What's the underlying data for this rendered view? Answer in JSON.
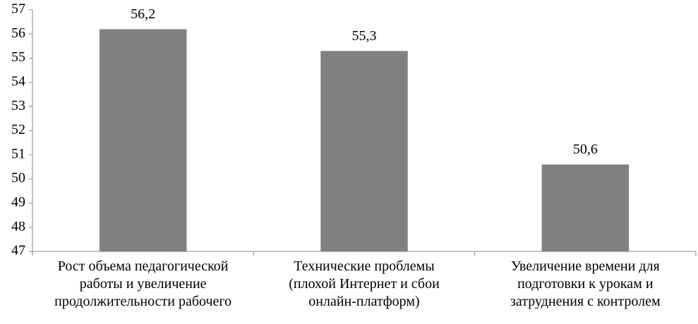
{
  "chart_data": {
    "type": "bar",
    "categories": [
      "Рост объема педагогической\nработы и увеличение\nпродолжительности рабочего",
      "Технические проблемы\n(плохой Интернет и сбои\nонлайн-платформ)",
      "Увеличение времени для\nподготовки к урокам и\nзатруднения с контролем"
    ],
    "values": [
      56.2,
      55.3,
      50.6
    ],
    "value_labels": [
      "56,2",
      "55,3",
      "50,6"
    ],
    "color": "#808080",
    "ylim": [
      47,
      57
    ],
    "yticks": [
      47,
      48,
      49,
      50,
      51,
      52,
      53,
      54,
      55,
      56,
      57
    ],
    "grid": false
  }
}
